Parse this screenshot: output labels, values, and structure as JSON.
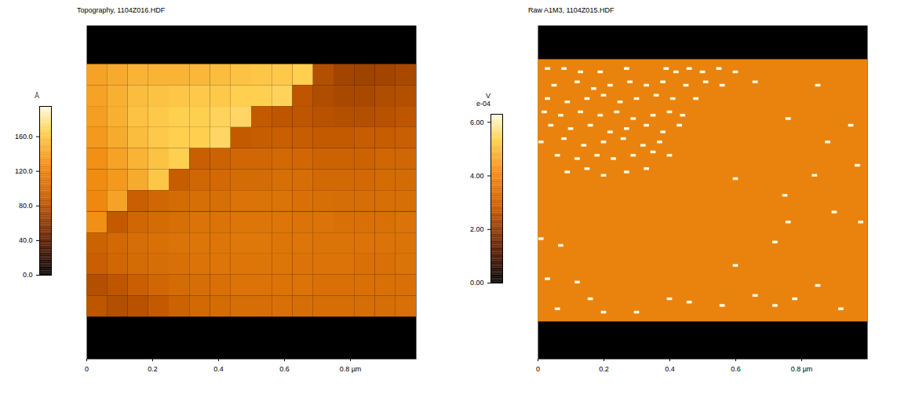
{
  "chart_data": [
    {
      "type": "heatmap",
      "title": "Topography, 1104Z016.HDF",
      "xlim": [
        0,
        1
      ],
      "ylim": [
        0,
        1
      ],
      "xticks": [
        0,
        0.2,
        0.4,
        0.6,
        {
          "value": 0.8,
          "label": "0.8 µm"
        }
      ],
      "tick_labels": "x",
      "x": [
        0.03125,
        0.09375,
        0.15625,
        0.21875,
        0.28125,
        0.34375,
        0.40625,
        0.46875,
        0.53125,
        0.59375,
        0.65625,
        0.71875,
        0.78125,
        0.84375,
        0.90625,
        0.96875
      ],
      "y": [
        0.852,
        0.789,
        0.726,
        0.663,
        0.6,
        0.537,
        0.474,
        0.41,
        0.347,
        0.284,
        0.221,
        0.158
      ],
      "values": [
        [
          140,
          145,
          150,
          150,
          150,
          152,
          155,
          158,
          160,
          162,
          165,
          80,
          72,
          70,
          72,
          75
        ],
        [
          140,
          148,
          155,
          158,
          160,
          162,
          162,
          165,
          165,
          168,
          85,
          78,
          75,
          75,
          78,
          80
        ],
        [
          138,
          148,
          158,
          162,
          165,
          165,
          168,
          170,
          88,
          85,
          85,
          82,
          80,
          80,
          82,
          85
        ],
        [
          135,
          145,
          155,
          162,
          165,
          165,
          170,
          88,
          90,
          92,
          90,
          88,
          88,
          90,
          90,
          92
        ],
        [
          130,
          140,
          150,
          158,
          165,
          92,
          95,
          98,
          98,
          100,
          98,
          95,
          95,
          95,
          98,
          98
        ],
        [
          128,
          135,
          145,
          160,
          90,
          98,
          100,
          102,
          102,
          105,
          104,
          100,
          100,
          100,
          102,
          102
        ],
        [
          125,
          140,
          92,
          98,
          102,
          105,
          105,
          108,
          108,
          108,
          106,
          105,
          104,
          104,
          105,
          105
        ],
        [
          130,
          88,
          98,
          102,
          105,
          108,
          108,
          110,
          110,
          110,
          108,
          108,
          106,
          106,
          106,
          108
        ],
        [
          95,
          100,
          104,
          106,
          108,
          110,
          110,
          112,
          112,
          110,
          110,
          108,
          108,
          108,
          108,
          108
        ],
        [
          92,
          98,
          102,
          104,
          106,
          108,
          110,
          110,
          110,
          110,
          108,
          108,
          108,
          106,
          106,
          108
        ],
        [
          80,
          85,
          92,
          98,
          102,
          104,
          106,
          108,
          108,
          108,
          108,
          106,
          106,
          106,
          106,
          106
        ],
        [
          85,
          80,
          82,
          88,
          95,
          100,
          102,
          104,
          104,
          106,
          104,
          104,
          104,
          104,
          104,
          106
        ]
      ],
      "colorbar": {
        "unit": "Å",
        "range": [
          0,
          195
        ],
        "ticks": [
          {
            "value": 0,
            "label": "0.0"
          },
          {
            "value": 40,
            "label": "40.0"
          },
          {
            "value": 80,
            "label": "80.0"
          },
          {
            "value": 120,
            "label": "120.0"
          },
          {
            "value": 160,
            "label": "160.0"
          }
        ]
      }
    },
    {
      "type": "heatmap",
      "title": "Raw A1M3, 1104Z015.HDF",
      "xlim": [
        0,
        1
      ],
      "ylim": [
        0,
        1
      ],
      "xticks": [
        0,
        0.2,
        0.4,
        0.6,
        {
          "value": 0.8,
          "label": "0.8 µm"
        }
      ],
      "tick_labels": "x",
      "background": {
        "x": [
          0,
          1
        ],
        "y": [
          0.112,
          0.898
        ],
        "value": 3.9
      },
      "spikes": {
        "value": 6.3,
        "points": [
          [
            0.03,
            0.87
          ],
          [
            0.08,
            0.87
          ],
          [
            0.13,
            0.86
          ],
          [
            0.19,
            0.86
          ],
          [
            0.27,
            0.87
          ],
          [
            0.39,
            0.87
          ],
          [
            0.42,
            0.86
          ],
          [
            0.46,
            0.87
          ],
          [
            0.5,
            0.86
          ],
          [
            0.55,
            0.87
          ],
          [
            0.6,
            0.86
          ],
          [
            0.05,
            0.82
          ],
          [
            0.12,
            0.83
          ],
          [
            0.17,
            0.81
          ],
          [
            0.22,
            0.82
          ],
          [
            0.28,
            0.83
          ],
          [
            0.33,
            0.82
          ],
          [
            0.38,
            0.83
          ],
          [
            0.45,
            0.82
          ],
          [
            0.51,
            0.83
          ],
          [
            0.56,
            0.82
          ],
          [
            0.66,
            0.83
          ],
          [
            0.03,
            0.78
          ],
          [
            0.09,
            0.77
          ],
          [
            0.15,
            0.78
          ],
          [
            0.2,
            0.79
          ],
          [
            0.25,
            0.77
          ],
          [
            0.3,
            0.78
          ],
          [
            0.36,
            0.79
          ],
          [
            0.41,
            0.78
          ],
          [
            0.48,
            0.78
          ],
          [
            0.02,
            0.74
          ],
          [
            0.07,
            0.73
          ],
          [
            0.13,
            0.74
          ],
          [
            0.19,
            0.73
          ],
          [
            0.24,
            0.74
          ],
          [
            0.29,
            0.72
          ],
          [
            0.35,
            0.73
          ],
          [
            0.4,
            0.74
          ],
          [
            0.44,
            0.73
          ],
          [
            0.04,
            0.7
          ],
          [
            0.1,
            0.69
          ],
          [
            0.16,
            0.7
          ],
          [
            0.22,
            0.68
          ],
          [
            0.27,
            0.69
          ],
          [
            0.33,
            0.7
          ],
          [
            0.38,
            0.68
          ],
          [
            0.43,
            0.7
          ],
          [
            0.01,
            0.65
          ],
          [
            0.08,
            0.66
          ],
          [
            0.14,
            0.64
          ],
          [
            0.2,
            0.65
          ],
          [
            0.26,
            0.66
          ],
          [
            0.32,
            0.64
          ],
          [
            0.37,
            0.65
          ],
          [
            0.06,
            0.61
          ],
          [
            0.12,
            0.6
          ],
          [
            0.18,
            0.61
          ],
          [
            0.23,
            0.6
          ],
          [
            0.29,
            0.61
          ],
          [
            0.35,
            0.62
          ],
          [
            0.4,
            0.61
          ],
          [
            0.09,
            0.56
          ],
          [
            0.15,
            0.57
          ],
          [
            0.2,
            0.55
          ],
          [
            0.27,
            0.56
          ],
          [
            0.33,
            0.57
          ],
          [
            0.85,
            0.82
          ],
          [
            0.76,
            0.72
          ],
          [
            0.95,
            0.7
          ],
          [
            0.88,
            0.65
          ],
          [
            0.6,
            0.54
          ],
          [
            0.84,
            0.55
          ],
          [
            0.97,
            0.58
          ],
          [
            0.75,
            0.49
          ],
          [
            0.9,
            0.44
          ],
          [
            0.98,
            0.41
          ],
          [
            0.01,
            0.36
          ],
          [
            0.07,
            0.34
          ],
          [
            0.76,
            0.41
          ],
          [
            0.72,
            0.35
          ],
          [
            0.6,
            0.28
          ],
          [
            0.03,
            0.24
          ],
          [
            0.12,
            0.23
          ],
          [
            0.2,
            0.14
          ],
          [
            0.4,
            0.18
          ],
          [
            0.46,
            0.17
          ],
          [
            0.56,
            0.16
          ],
          [
            0.66,
            0.19
          ],
          [
            0.72,
            0.16
          ],
          [
            0.78,
            0.18
          ],
          [
            0.92,
            0.15
          ],
          [
            0.06,
            0.15
          ],
          [
            0.16,
            0.18
          ],
          [
            0.3,
            0.14
          ],
          [
            0.85,
            0.22
          ]
        ]
      },
      "colorbar": {
        "unit": "V",
        "exponent": "e-04",
        "range": [
          0,
          6.3
        ],
        "ticks": [
          {
            "value": 0,
            "label": "0.00"
          },
          {
            "value": 2,
            "label": "2.00"
          },
          {
            "value": 4,
            "label": "4.00"
          },
          {
            "value": 6,
            "label": "6.00"
          }
        ]
      }
    }
  ]
}
